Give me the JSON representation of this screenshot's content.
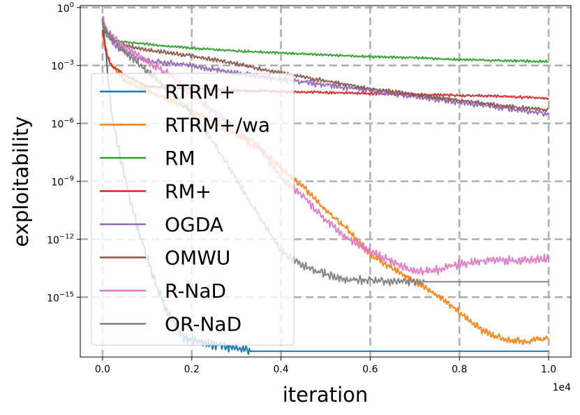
{
  "chart_data": {
    "type": "line",
    "xlabel": "iteration",
    "ylabel": "exploitability",
    "x_multiplier_label": "1e4",
    "xlim": [
      -0.05,
      1.05
    ],
    "ylim_log10": [
      -18.1,
      0.1
    ],
    "xticks": [
      0.0,
      0.2,
      0.4,
      0.6,
      0.8,
      1.0
    ],
    "xtick_labels": [
      "0.0",
      "0.2",
      "0.4",
      "0.6",
      "0.8",
      "1.0"
    ],
    "yticks_log10": [
      0,
      -3,
      -6,
      -9,
      -12,
      -15
    ],
    "ytick_labels": [
      {
        "base": "10",
        "exp": "0"
      },
      {
        "base": "10",
        "exp": "−3"
      },
      {
        "base": "10",
        "exp": "−6"
      },
      {
        "base": "10",
        "exp": "−9"
      },
      {
        "base": "10",
        "exp": "−12"
      },
      {
        "base": "10",
        "exp": "−15"
      }
    ],
    "grid": true,
    "legend_position": "left",
    "series": [
      {
        "name": "RTRM+",
        "color": "#1f77b4",
        "x": [
          0,
          0.005,
          0.01,
          0.02,
          0.04,
          0.06,
          0.08,
          0.1,
          0.12,
          0.14,
          0.16,
          0.18,
          0.2,
          0.23,
          0.26,
          0.29,
          0.32,
          0.33,
          0.5,
          0.7,
          0.9,
          1.0
        ],
        "y_log10": [
          -0.6,
          -1.8,
          -3.0,
          -5.5,
          -7.8,
          -9.8,
          -11.5,
          -13.0,
          -14.3,
          -15.5,
          -16.3,
          -17.0,
          -17.2,
          -17.4,
          -17.5,
          -17.6,
          -17.8,
          -17.8,
          -17.8,
          -17.8,
          -17.8,
          -17.8
        ],
        "noise": 0.3,
        "noise_until": 0.33
      },
      {
        "name": "RTRM+/wa",
        "color": "#ff7f0e",
        "x": [
          0,
          0.01,
          0.02,
          0.05,
          0.1,
          0.15,
          0.2,
          0.25,
          0.3,
          0.35,
          0.4,
          0.45,
          0.5,
          0.55,
          0.6,
          0.65,
          0.7,
          0.75,
          0.8,
          0.85,
          0.9,
          0.95,
          1.0
        ],
        "y_log10": [
          -1.5,
          -2.4,
          -3.0,
          -3.8,
          -4.3,
          -4.8,
          -5.3,
          -6.0,
          -6.6,
          -7.3,
          -8.3,
          -9.3,
          -10.5,
          -11.5,
          -12.8,
          -13.5,
          -14.2,
          -14.9,
          -15.8,
          -16.7,
          -17.2,
          -17.3,
          -17.1
        ],
        "noise": 0.2
      },
      {
        "name": "RM",
        "color": "#2ca02c",
        "x": [
          0,
          0.01,
          0.02,
          0.05,
          0.1,
          0.2,
          0.3,
          0.4,
          0.5,
          0.6,
          0.7,
          0.8,
          0.9,
          1.0
        ],
        "y_log10": [
          -1.0,
          -1.5,
          -1.7,
          -1.8,
          -1.9,
          -2.1,
          -2.25,
          -2.35,
          -2.45,
          -2.55,
          -2.6,
          -2.7,
          -2.75,
          -2.8
        ],
        "noise": 0.07
      },
      {
        "name": "RM+",
        "color": "#d62728",
        "x": [
          0,
          0.01,
          0.02,
          0.05,
          0.1,
          0.2,
          0.3,
          0.4,
          0.5,
          0.6,
          0.7,
          0.8,
          0.9,
          1.0
        ],
        "y_log10": [
          -1.2,
          -2.5,
          -3.0,
          -3.5,
          -4.1,
          -4.2,
          -4.3,
          -4.35,
          -4.4,
          -4.45,
          -4.5,
          -4.55,
          -4.6,
          -4.7
        ],
        "noise": 0.08
      },
      {
        "name": "OGDA",
        "color": "#9467bd",
        "x": [
          0,
          0.01,
          0.03,
          0.06,
          0.1,
          0.2,
          0.3,
          0.4,
          0.5,
          0.6,
          0.7,
          0.8,
          0.9,
          1.0
        ],
        "y_log10": [
          -0.5,
          -1.4,
          -2.0,
          -2.4,
          -2.8,
          -3.0,
          -3.4,
          -3.7,
          -4.0,
          -4.3,
          -4.6,
          -4.9,
          -5.2,
          -5.5
        ],
        "noise": 0.18
      },
      {
        "name": "OMWU",
        "color": "#8c564b",
        "x": [
          0,
          0.01,
          0.03,
          0.06,
          0.1,
          0.2,
          0.3,
          0.4,
          0.5,
          0.6,
          0.7,
          0.8,
          0.9,
          1.0
        ],
        "y_log10": [
          -0.8,
          -1.3,
          -1.8,
          -2.0,
          -2.2,
          -2.5,
          -2.9,
          -3.4,
          -3.8,
          -4.2,
          -4.5,
          -4.8,
          -5.1,
          -5.3
        ],
        "noise": 0.12
      },
      {
        "name": "R-NaD",
        "color": "#e377c2",
        "x": [
          0,
          0.01,
          0.03,
          0.06,
          0.1,
          0.15,
          0.2,
          0.25,
          0.3,
          0.35,
          0.4,
          0.45,
          0.5,
          0.55,
          0.6,
          0.65,
          0.7,
          0.75,
          0.8,
          0.85,
          0.9,
          0.95,
          1.0
        ],
        "y_log10": [
          -0.6,
          -1.2,
          -1.7,
          -2.2,
          -2.8,
          -3.5,
          -4.5,
          -5.4,
          -6.3,
          -7.2,
          -8.8,
          -9.8,
          -11.0,
          -12.0,
          -12.6,
          -13.2,
          -13.7,
          -13.6,
          -13.3,
          -13.1,
          -13.1,
          -13.1,
          -13.0
        ],
        "noise": 0.25
      },
      {
        "name": "OR-NaD",
        "color": "#7f7f7f",
        "x": [
          0,
          0.01,
          0.03,
          0.06,
          0.1,
          0.15,
          0.2,
          0.25,
          0.3,
          0.35,
          0.4,
          0.45,
          0.5,
          0.55,
          0.6,
          0.65,
          0.7,
          0.72,
          0.8,
          0.9,
          1.0
        ],
        "y_log10": [
          -0.9,
          -1.3,
          -1.8,
          -2.5,
          -3.3,
          -4.3,
          -5.5,
          -7.0,
          -8.9,
          -10.8,
          -12.6,
          -13.4,
          -13.8,
          -14.1,
          -14.1,
          -14.2,
          -14.2,
          -14.2,
          -14.2,
          -14.2,
          -14.2
        ],
        "noise": 0.25,
        "noise_until": 0.72
      }
    ]
  }
}
